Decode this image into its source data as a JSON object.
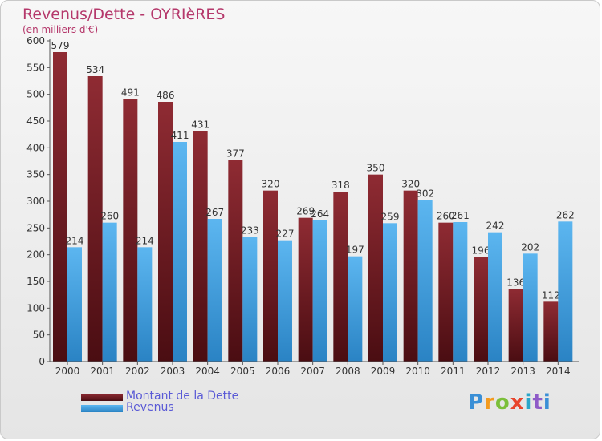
{
  "title": "Revenus/Dette - OYRIèRES",
  "subtitle": "(en milliers d'€)",
  "brand": "Proxiti",
  "colors": {
    "dette_top": "#8f2b33",
    "dette_bottom": "#4a0d12",
    "revenus_top": "#5cb6f0",
    "revenus_bottom": "#2a83c4",
    "title": "#b5386b",
    "legend_text": "#5a5ad6"
  },
  "chart_data": {
    "type": "bar",
    "categories": [
      "2000",
      "2001",
      "2002",
      "2003",
      "2004",
      "2005",
      "2006",
      "2007",
      "2008",
      "2009",
      "2010",
      "2011",
      "2012",
      "2013",
      "2014"
    ],
    "series": [
      {
        "name": "Montant de la Dette",
        "values": [
          579,
          534,
          491,
          486,
          431,
          377,
          320,
          269,
          318,
          350,
          320,
          260,
          196,
          136,
          112
        ]
      },
      {
        "name": "Revenus",
        "values": [
          214,
          260,
          214,
          411,
          267,
          233,
          227,
          264,
          197,
          259,
          302,
          261,
          242,
          202,
          262
        ]
      }
    ],
    "yticks": [
      0,
      50,
      100,
      150,
      200,
      250,
      300,
      350,
      400,
      450,
      500,
      550,
      600
    ],
    "ylim": [
      0,
      600
    ],
    "grid": false,
    "legend": "bottom-left"
  }
}
